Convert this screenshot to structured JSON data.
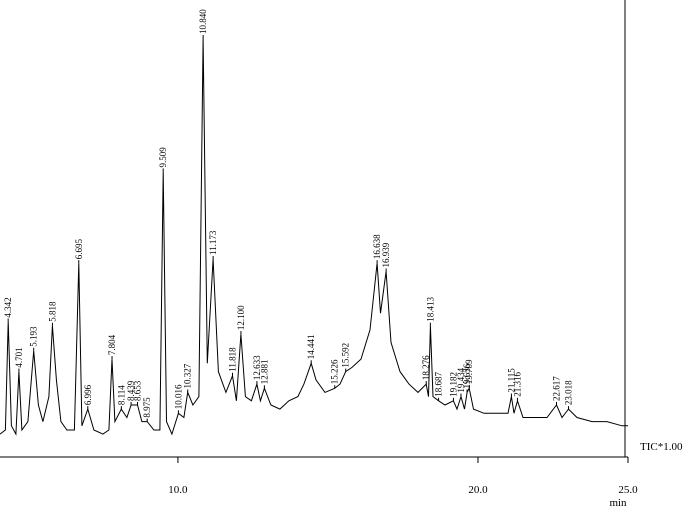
{
  "chart_data": {
    "type": "line",
    "x_label": "min",
    "xlim": [
      4.07,
      25.0
    ],
    "xticks": [
      {
        "value": 10,
        "label": "10.0"
      },
      {
        "value": 20,
        "label": "20.0"
      },
      {
        "value": 25,
        "label": "25.0"
      }
    ],
    "ylim": [
      0,
      100
    ],
    "x": [
      4.07,
      4.25,
      4.342,
      4.45,
      4.6,
      4.701,
      4.8,
      5.0,
      5.193,
      5.35,
      5.5,
      5.7,
      5.818,
      5.95,
      6.1,
      6.3,
      6.55,
      6.695,
      6.8,
      6.996,
      7.2,
      7.5,
      7.7,
      7.804,
      7.9,
      8.114,
      8.3,
      8.439,
      8.653,
      8.8,
      8.975,
      9.2,
      9.4,
      9.509,
      9.62,
      9.8,
      10.016,
      10.2,
      10.327,
      10.5,
      10.7,
      10.84,
      10.98,
      11.173,
      11.35,
      11.6,
      11.818,
      11.95,
      12.1,
      12.25,
      12.45,
      12.633,
      12.75,
      12.881,
      13.1,
      13.4,
      13.7,
      14.0,
      14.2,
      14.441,
      14.6,
      14.9,
      15.226,
      15.4,
      15.592,
      15.8,
      16.1,
      16.4,
      16.638,
      16.75,
      16.939,
      17.1,
      17.4,
      17.7,
      18.0,
      18.276,
      18.35,
      18.413,
      18.5,
      18.687,
      18.9,
      19.182,
      19.3,
      19.434,
      19.55,
      19.636,
      19.709,
      19.85,
      20.2,
      20.6,
      21.0,
      21.115,
      21.2,
      21.316,
      21.5,
      21.9,
      22.3,
      22.617,
      22.8,
      23.018,
      23.3,
      23.8,
      24.3,
      24.8,
      25.0
    ],
    "series": [
      {
        "name": "TIC*1.00",
        "color": "#000000",
        "values": [
          5,
          6,
          32,
          7,
          5,
          20,
          6,
          8,
          25,
          12,
          8,
          14,
          31,
          18,
          8,
          6,
          6,
          46,
          7,
          11,
          6,
          5,
          6,
          23,
          8,
          11,
          9,
          12,
          12,
          8,
          8,
          6,
          6,
          68,
          8,
          5,
          10,
          9,
          15,
          12,
          14,
          100,
          22,
          47,
          20,
          15,
          19,
          13,
          29,
          14,
          13,
          17,
          13,
          16,
          12,
          11,
          13,
          14,
          17,
          22,
          18,
          15,
          16,
          17,
          20,
          21,
          23,
          30,
          46,
          34,
          44,
          27,
          20,
          17,
          15,
          17,
          14,
          31,
          14,
          13,
          12,
          13,
          11,
          14,
          11,
          15,
          16,
          11,
          10,
          10,
          10,
          14,
          10,
          13,
          9,
          9,
          9,
          12,
          9,
          11,
          9,
          8,
          8,
          7,
          7
        ]
      }
    ],
    "peaks": [
      {
        "label": "4.342",
        "rt": 4.342,
        "height": 32
      },
      {
        "label": "4.701",
        "rt": 4.701,
        "height": 20
      },
      {
        "label": "5.193",
        "rt": 5.193,
        "height": 25
      },
      {
        "label": "5.818",
        "rt": 5.818,
        "height": 31
      },
      {
        "label": "6.695",
        "rt": 6.695,
        "height": 46
      },
      {
        "label": "6.996",
        "rt": 6.996,
        "height": 11
      },
      {
        "label": "7.804",
        "rt": 7.804,
        "height": 23
      },
      {
        "label": "8.114",
        "rt": 8.114,
        "height": 11
      },
      {
        "label": "8.439",
        "rt": 8.439,
        "height": 12
      },
      {
        "label": "8.653",
        "rt": 8.653,
        "height": 12
      },
      {
        "label": "8.975",
        "rt": 8.975,
        "height": 8
      },
      {
        "label": "9.509",
        "rt": 9.509,
        "height": 68
      },
      {
        "label": "10.016",
        "rt": 10.016,
        "height": 10
      },
      {
        "label": "10.327",
        "rt": 10.327,
        "height": 15
      },
      {
        "label": "10.840",
        "rt": 10.84,
        "height": 100
      },
      {
        "label": "11.173",
        "rt": 11.173,
        "height": 47
      },
      {
        "label": "11.818",
        "rt": 11.818,
        "height": 19
      },
      {
        "label": "12.100",
        "rt": 12.1,
        "height": 29
      },
      {
        "label": "12.633",
        "rt": 12.633,
        "height": 17
      },
      {
        "label": "12.881",
        "rt": 12.881,
        "height": 16
      },
      {
        "label": "14.441",
        "rt": 14.441,
        "height": 22
      },
      {
        "label": "15.226",
        "rt": 15.226,
        "height": 16
      },
      {
        "label": "15.592",
        "rt": 15.592,
        "height": 20
      },
      {
        "label": "16.638",
        "rt": 16.638,
        "height": 46
      },
      {
        "label": "16.939",
        "rt": 16.939,
        "height": 44
      },
      {
        "label": "18.276",
        "rt": 18.276,
        "height": 17
      },
      {
        "label": "18.413",
        "rt": 18.413,
        "height": 31
      },
      {
        "label": "18.687",
        "rt": 18.687,
        "height": 13
      },
      {
        "label": "19.182",
        "rt": 19.182,
        "height": 13
      },
      {
        "label": "19.434",
        "rt": 19.434,
        "height": 14
      },
      {
        "label": "19.636",
        "rt": 19.636,
        "height": 15
      },
      {
        "label": "19.709",
        "rt": 19.709,
        "height": 16
      },
      {
        "label": "21.115",
        "rt": 21.115,
        "height": 14
      },
      {
        "label": "21.316",
        "rt": 21.316,
        "height": 13
      },
      {
        "label": "22.617",
        "rt": 22.617,
        "height": 12
      },
      {
        "label": "23.018",
        "rt": 23.018,
        "height": 11
      }
    ]
  }
}
